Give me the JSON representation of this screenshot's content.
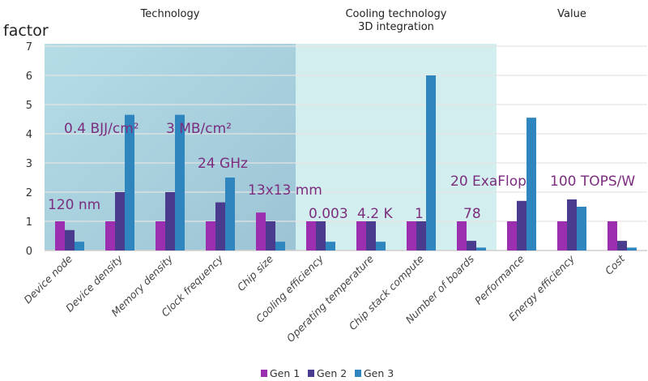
{
  "chart_data": {
    "type": "bar",
    "ylabel": "factor",
    "ylim": [
      0,
      7
    ],
    "yticks": [
      "0",
      "1",
      "2",
      "3",
      "4",
      "5",
      "6",
      "7"
    ],
    "grid": true,
    "legend_placement": "bottom",
    "categories": [
      "Device node",
      "Device density",
      "Memory density",
      "Clock frequency",
      "Chip size",
      "Cooling efficiency",
      "Operating temperature",
      "Chip stack compute",
      "Number of boards",
      "Performance",
      "Energy efficiency",
      "Cost"
    ],
    "series": [
      {
        "name": "Gen 1",
        "color": "#9b2fb0",
        "values": [
          1,
          1,
          1,
          1,
          1.3,
          1,
          1,
          1,
          1,
          1,
          1,
          1
        ]
      },
      {
        "name": "Gen 2",
        "color": "#4a3b8f",
        "values": [
          0.7,
          2,
          2,
          1.65,
          1,
          1,
          1,
          1,
          0.33,
          1.7,
          1.75,
          0.33
        ]
      },
      {
        "name": "Gen 3",
        "color": "#2f86bf",
        "values": [
          0.3,
          4.65,
          4.65,
          2.5,
          0.3,
          0.3,
          0.3,
          6,
          0.1,
          4.55,
          1.5,
          0.1
        ]
      }
    ],
    "groups": [
      {
        "label_lines": [
          "Technology"
        ],
        "categories": [
          "Device node",
          "Chip size"
        ],
        "shade": "#a9d3de"
      },
      {
        "label_lines": [
          "Cooling technology",
          "3D integration"
        ],
        "categories": [
          "Cooling efficiency",
          "Number of boards"
        ],
        "shade": "#d3eeee"
      },
      {
        "label_lines": [
          "Value"
        ],
        "categories": [
          "Performance",
          "Cost"
        ],
        "shade": "#ffffff"
      }
    ],
    "annotations": [
      {
        "text": "120 nm",
        "category": "Device node"
      },
      {
        "text": "0.4 BJJ/cm²",
        "category": "Device density"
      },
      {
        "text": "3 MB/cm²",
        "category": "Memory density"
      },
      {
        "text": "24 GHz",
        "category": "Clock frequency"
      },
      {
        "text": "13x13 mm",
        "category": "Chip size"
      },
      {
        "text": "0.003",
        "category": "Cooling efficiency"
      },
      {
        "text": "4.2 K",
        "category": "Operating temperature"
      },
      {
        "text": "1",
        "category": "Chip stack compute"
      },
      {
        "text": "78",
        "category": "Number of boards"
      },
      {
        "text": "20 ExaFlop",
        "category": "Performance"
      },
      {
        "text": "100 TOPS/W",
        "category": "Energy efficiency"
      }
    ],
    "annotation_color": "#7b2d7e"
  }
}
